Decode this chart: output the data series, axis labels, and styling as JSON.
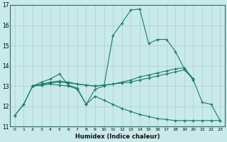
{
  "xlabel": "Humidex (Indice chaleur)",
  "background_color": "#c8eaea",
  "grid_color": "#b0cccc",
  "line_color": "#1a7a6e",
  "xlim": [
    -0.5,
    23.5
  ],
  "ylim": [
    11,
    17
  ],
  "yticks": [
    11,
    12,
    13,
    14,
    15,
    16,
    17
  ],
  "xticks": [
    0,
    1,
    2,
    3,
    4,
    5,
    6,
    7,
    8,
    9,
    10,
    11,
    12,
    13,
    14,
    15,
    16,
    17,
    18,
    19,
    20,
    21,
    22,
    23
  ],
  "series": [
    {
      "x": [
        0,
        1,
        2,
        3,
        4,
        5,
        6,
        7,
        8,
        9,
        10,
        11,
        12,
        13,
        14,
        15,
        16,
        17,
        18,
        19,
        20,
        21,
        22,
        23
      ],
      "y": [
        11.55,
        12.1,
        13.0,
        13.2,
        13.35,
        13.6,
        13.05,
        12.9,
        12.1,
        12.85,
        13.0,
        15.5,
        16.1,
        16.75,
        16.8,
        15.1,
        15.3,
        15.3,
        14.7,
        13.85,
        13.3,
        12.2,
        12.1,
        11.3
      ]
    },
    {
      "x": [
        2,
        3,
        4,
        5,
        6,
        7,
        8,
        9,
        10,
        11,
        12,
        13,
        14,
        15,
        16,
        17,
        18,
        19,
        20
      ],
      "y": [
        13.0,
        13.1,
        13.2,
        13.25,
        13.2,
        13.1,
        13.05,
        13.0,
        13.05,
        13.1,
        13.15,
        13.2,
        13.3,
        13.4,
        13.5,
        13.6,
        13.7,
        13.8,
        13.35
      ]
    },
    {
      "x": [
        2,
        3,
        4,
        5,
        6,
        7,
        8,
        9,
        10,
        11,
        12,
        13,
        14,
        15,
        16,
        17,
        18,
        19,
        20
      ],
      "y": [
        13.0,
        13.05,
        13.15,
        13.2,
        13.15,
        13.1,
        13.05,
        13.0,
        13.05,
        13.1,
        13.2,
        13.3,
        13.45,
        13.55,
        13.65,
        13.75,
        13.85,
        13.9,
        13.35
      ]
    },
    {
      "x": [
        0,
        1,
        2,
        3,
        4,
        5,
        6,
        7,
        8,
        9,
        10,
        11,
        12,
        13,
        14,
        15,
        16,
        17,
        18,
        19,
        20,
        21,
        22,
        23
      ],
      "y": [
        11.55,
        12.1,
        13.0,
        13.05,
        13.1,
        13.05,
        13.0,
        12.85,
        12.1,
        12.5,
        12.3,
        12.1,
        11.9,
        11.75,
        11.6,
        11.5,
        11.4,
        11.35,
        11.3,
        11.3,
        11.3,
        11.3,
        11.3,
        11.3
      ]
    }
  ]
}
